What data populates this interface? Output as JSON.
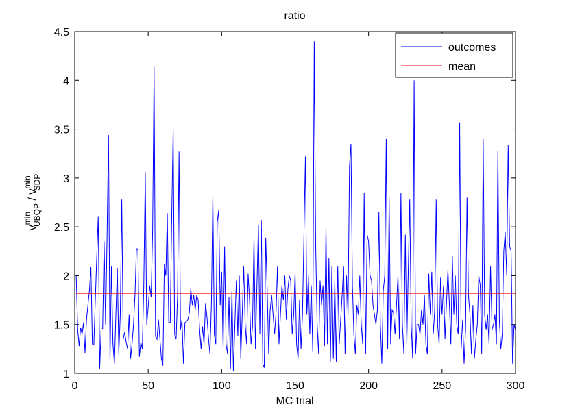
{
  "chart_data": {
    "type": "line",
    "title": "ratio",
    "xlabel": "MC trial",
    "ylabel": {
      "base1": "v",
      "sup1": "min",
      "sub1": "UBQP",
      "sep": " / ",
      "base2": "v",
      "sup2": "min",
      "sub2": "SDP"
    },
    "xlim": [
      0,
      300
    ],
    "xticks": [
      0,
      50,
      100,
      150,
      200,
      250,
      300
    ],
    "ylim": [
      1,
      4.5
    ],
    "yticks": [
      1,
      {
        "value": 1.5,
        "label": "1.5"
      },
      2,
      {
        "value": 2.5,
        "label": "2.5"
      },
      3,
      {
        "value": 3.5,
        "label": "3.5"
      },
      4,
      {
        "value": 4.5,
        "label": "4.5"
      }
    ],
    "legend": "northeast",
    "grid": false,
    "series": [
      {
        "name": "outcomes",
        "color": "#0000ff",
        "x": [
          1,
          2,
          3,
          4,
          5,
          6,
          7,
          8,
          9,
          10,
          11,
          12,
          13,
          14,
          15,
          16,
          17,
          18,
          19,
          20,
          21,
          22,
          23,
          24,
          25,
          26,
          27,
          28,
          29,
          30,
          31,
          32,
          33,
          34,
          35,
          36,
          37,
          38,
          39,
          40,
          41,
          42,
          43,
          44,
          45,
          46,
          47,
          48,
          49,
          50,
          51,
          52,
          53,
          54,
          55,
          56,
          57,
          58,
          59,
          60,
          61,
          62,
          63,
          64,
          65,
          66,
          67,
          68,
          69,
          70,
          71,
          72,
          73,
          74,
          75,
          76,
          77,
          78,
          79,
          80,
          81,
          82,
          83,
          84,
          85,
          86,
          87,
          88,
          89,
          90,
          91,
          92,
          93,
          94,
          95,
          96,
          97,
          98,
          99,
          100,
          101,
          102,
          103,
          104,
          105,
          106,
          107,
          108,
          109,
          110,
          111,
          112,
          113,
          114,
          115,
          116,
          117,
          118,
          119,
          120,
          121,
          122,
          123,
          124,
          125,
          126,
          127,
          128,
          129,
          130,
          131,
          132,
          133,
          134,
          135,
          136,
          137,
          138,
          139,
          140,
          141,
          142,
          143,
          144,
          145,
          146,
          147,
          148,
          149,
          150,
          151,
          152,
          153,
          154,
          155,
          156,
          157,
          158,
          159,
          160,
          161,
          162,
          163,
          164,
          165,
          166,
          167,
          168,
          169,
          170,
          171,
          172,
          173,
          174,
          175,
          176,
          177,
          178,
          179,
          180,
          181,
          182,
          183,
          184,
          185,
          186,
          187,
          188,
          189,
          190,
          191,
          192,
          193,
          194,
          195,
          196,
          197,
          198,
          199,
          200,
          201,
          202,
          203,
          204,
          205,
          206,
          207,
          208,
          209,
          210,
          211,
          212,
          213,
          214,
          215,
          216,
          217,
          218,
          219,
          220,
          221,
          222,
          223,
          224,
          225,
          226,
          227,
          228,
          229,
          230,
          231,
          232,
          233,
          234,
          235,
          236,
          237,
          238,
          239,
          240,
          241,
          242,
          243,
          244,
          245,
          246,
          247,
          248,
          249,
          250,
          251,
          252,
          253,
          254,
          255,
          256,
          257,
          258,
          259,
          260,
          261,
          262,
          263,
          264,
          265,
          266,
          267,
          268,
          269,
          270,
          271,
          272,
          273,
          274,
          275,
          276,
          277,
          278,
          279,
          280,
          281,
          282,
          283,
          284,
          285,
          286,
          287,
          288,
          289,
          290,
          291,
          292,
          293,
          294,
          295,
          296,
          297,
          298,
          299,
          300
        ],
        "values": [
          2.0,
          1.45,
          1.28,
          1.47,
          1.4,
          1.52,
          1.21,
          1.55,
          1.7,
          1.85,
          2.09,
          1.3,
          1.29,
          1.75,
          2.2,
          2.61,
          1.05,
          1.47,
          1.46,
          2.35,
          1.5,
          2.4,
          3.44,
          1.12,
          2.1,
          1.3,
          1.1,
          1.6,
          2.08,
          1.2,
          1.6,
          2.78,
          1.35,
          1.42,
          1.32,
          1.25,
          1.6,
          1.15,
          1.3,
          1.5,
          1.8,
          2.28,
          2.26,
          1.17,
          1.32,
          1.25,
          1.9,
          3.06,
          1.5,
          1.68,
          1.9,
          1.78,
          2.45,
          4.14,
          1.38,
          1.35,
          1.55,
          1.35,
          1.15,
          1.08,
          2.12,
          2.0,
          2.64,
          1.52,
          1.52,
          2.6,
          3.5,
          1.4,
          1.35,
          1.8,
          3.27,
          1.45,
          1.55,
          1.1,
          1.52,
          1.53,
          1.55,
          1.62,
          1.87,
          1.7,
          1.8,
          1.65,
          1.8,
          1.75,
          1.45,
          1.25,
          1.48,
          1.3,
          1.72,
          1.58,
          1.37,
          1.2,
          1.7,
          2.82,
          1.4,
          1.3,
          2.55,
          2.67,
          1.7,
          2.04,
          1.25,
          2.3,
          1.3,
          1.2,
          1.78,
          1.05,
          1.85,
          1.02,
          1.5,
          1.95,
          1.38,
          2.0,
          1.15,
          1.6,
          2.1,
          1.5,
          1.3,
          2.02,
          1.75,
          1.3,
          1.48,
          2.39,
          1.25,
          1.9,
          2.52,
          1.4,
          2.57,
          1.1,
          1.06,
          2.39,
          1.85,
          1.2,
          1.65,
          1.8,
          1.6,
          1.4,
          1.62,
          2.1,
          1.3,
          1.6,
          1.9,
          1.75,
          2.0,
          1.55,
          1.85,
          2.0,
          1.95,
          1.4,
          1.6,
          2.03,
          1.3,
          1.15,
          1.75,
          1.25,
          1.6,
          2.4,
          3.22,
          1.6,
          2.0,
          1.4,
          1.9,
          1.22,
          4.4,
          2.3,
          1.5,
          1.2,
          1.95,
          1.7,
          1.9,
          1.28,
          2.5,
          1.3,
          2.18,
          1.12,
          2.1,
          1.15,
          1.95,
          1.12,
          2.1,
          1.3,
          1.55,
          1.8,
          2.1,
          1.2,
          2.0,
          1.6,
          3.12,
          3.35,
          1.9,
          1.4,
          1.2,
          1.7,
          1.6,
          2.0,
          1.5,
          1.3,
          2.85,
          1.2,
          2.42,
          2.35,
          2.0,
          1.95,
          1.7,
          1.6,
          1.5,
          1.65,
          2.65,
          1.5,
          1.1,
          1.85,
          2.0,
          3.4,
          1.25,
          2.8,
          1.3,
          1.65,
          1.62,
          1.4,
          1.7,
          2.0,
          1.35,
          2.85,
          1.5,
          1.2,
          2.42,
          1.3,
          2.05,
          2.78,
          1.5,
          1.15,
          4.0,
          1.2,
          1.5,
          1.5,
          1.4,
          1.65,
          1.5,
          1.8,
          1.3,
          1.2,
          2.02,
          1.6,
          2.04,
          1.4,
          1.65,
          2.78,
          1.5,
          1.3,
          1.98,
          1.6,
          1.9,
          1.35,
          1.72,
          2.06,
          1.7,
          1.3,
          2.2,
          1.6,
          2.0,
          1.5,
          1.4,
          3.57,
          1.25,
          1.55,
          1.1,
          1.45,
          2.8,
          1.8,
          1.6,
          1.2,
          1.7,
          1.15,
          1.35,
          1.5,
          2.0,
          1.9,
          1.2,
          3.4,
          1.6,
          1.45,
          1.6,
          1.3,
          2.1,
          1.45,
          1.5,
          1.6,
          1.3,
          3.28,
          1.55,
          1.25,
          1.4,
          2.25,
          2.45,
          2.0,
          3.34,
          2.3,
          2.25,
          1.1,
          1.5,
          1.45
        ]
      },
      {
        "name": "mean",
        "color": "#ff0000",
        "x": [
          1,
          300
        ],
        "values": [
          1.82,
          1.82
        ]
      }
    ]
  }
}
